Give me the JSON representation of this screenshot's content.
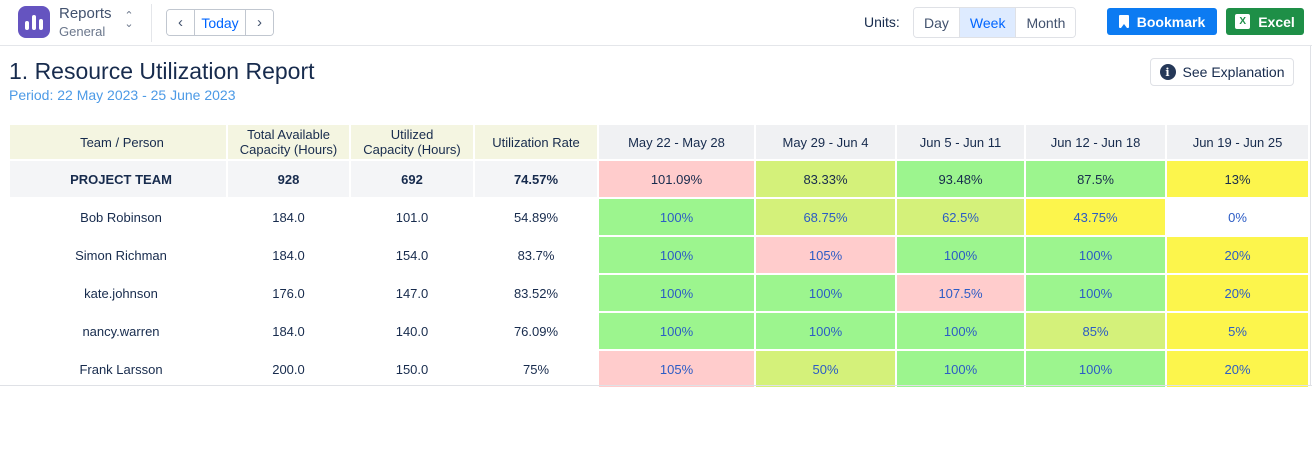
{
  "app": {
    "title": "Reports",
    "subtitle": "General",
    "switch_up": "⌃",
    "switch_down": "⌄"
  },
  "nav": {
    "prev": "‹",
    "today": "Today",
    "next": "›"
  },
  "units": {
    "label": "Units:",
    "options": [
      "Day",
      "Week",
      "Month"
    ],
    "selected": "Week"
  },
  "actions": {
    "bookmark": "Bookmark",
    "excel": "Excel",
    "excel_icon": "X"
  },
  "report": {
    "title": "1. Resource Utilization Report",
    "period": "Period: 22 May 2023 - 25 June 2023",
    "explain": "See Explanation",
    "info_icon": "i"
  },
  "table": {
    "headers": {
      "person": "Team / Person",
      "total_line1": "Total Available",
      "total_line2": "Capacity (Hours)",
      "util_line1": "Utilized",
      "util_line2": "Capacity (Hours)",
      "rate": "Utilization Rate"
    },
    "weeks": [
      "May 22 - May 28",
      "May 29 - Jun 4",
      "Jun 5 - Jun 11",
      "Jun 12 - Jun 18",
      "Jun 19 - Jun 25"
    ],
    "rows": [
      {
        "name": "PROJECT TEAM",
        "total": "928",
        "utilized": "692",
        "rate": "74.57%",
        "cells": [
          "101.09%",
          "83.33%",
          "93.48%",
          "87.5%",
          "13%"
        ],
        "colors": [
          "red",
          "lime",
          "green",
          "green",
          "yellow"
        ]
      },
      {
        "name": "Bob Robinson",
        "total": "184.0",
        "utilized": "101.0",
        "rate": "54.89%",
        "cells": [
          "100%",
          "68.75%",
          "62.5%",
          "43.75%",
          "0%"
        ],
        "colors": [
          "green",
          "lime",
          "lime",
          "yellow",
          "white"
        ]
      },
      {
        "name": "Simon Richman",
        "total": "184.0",
        "utilized": "154.0",
        "rate": "83.7%",
        "cells": [
          "100%",
          "105%",
          "100%",
          "100%",
          "20%"
        ],
        "colors": [
          "green",
          "red",
          "green",
          "green",
          "yellow"
        ]
      },
      {
        "name": "kate.johnson",
        "total": "176.0",
        "utilized": "147.0",
        "rate": "83.52%",
        "cells": [
          "100%",
          "100%",
          "107.5%",
          "100%",
          "20%"
        ],
        "colors": [
          "green",
          "green",
          "red",
          "green",
          "yellow"
        ]
      },
      {
        "name": "nancy.warren",
        "total": "184.0",
        "utilized": "140.0",
        "rate": "76.09%",
        "cells": [
          "100%",
          "100%",
          "100%",
          "85%",
          "5%"
        ],
        "colors": [
          "green",
          "green",
          "green",
          "lime",
          "yellow"
        ]
      },
      {
        "name": "Frank Larsson",
        "total": "200.0",
        "utilized": "150.0",
        "rate": "75%",
        "cells": [
          "105%",
          "50%",
          "100%",
          "100%",
          "20%"
        ],
        "colors": [
          "red",
          "lime",
          "green",
          "green",
          "yellow"
        ]
      }
    ]
  }
}
